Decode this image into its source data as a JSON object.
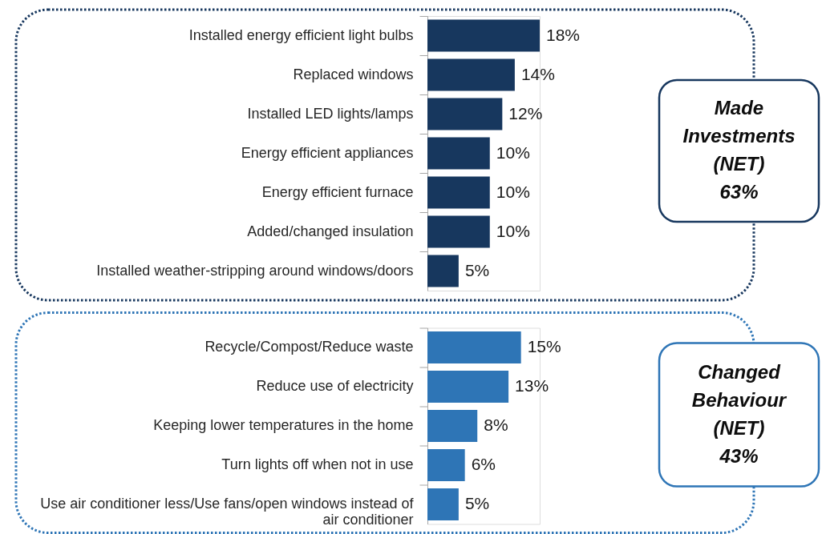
{
  "chart_data": [
    {
      "type": "bar",
      "orientation": "horizontal",
      "categories": [
        "Installed energy efficient light bulbs",
        "Replaced windows",
        "Installed LED lights/lamps",
        "Energy efficient appliances",
        "Energy efficient furnace",
        "Added/changed insulation",
        "Installed weather-stripping around windows/doors"
      ],
      "values": [
        18,
        14,
        12,
        10,
        10,
        10,
        5
      ],
      "value_labels": [
        "18%",
        "14%",
        "12%",
        "10%",
        "10%",
        "10%",
        "5%"
      ],
      "color": "#17375e",
      "tick_labels": "y",
      "annotations": [
        "Made Investments (NET) 63%"
      ]
    },
    {
      "type": "bar",
      "orientation": "horizontal",
      "categories": [
        "Recycle/Compost/Reduce waste",
        "Reduce use of electricity",
        "Keeping lower temperatures in the home",
        "Turn lights off when not in use",
        "Use air conditioner less/Use fans/open windows instead of air conditioner"
      ],
      "values": [
        15,
        13,
        8,
        6,
        5
      ],
      "value_labels": [
        "15%",
        "13%",
        "8%",
        "6%",
        "5%"
      ],
      "color": "#2e75b6",
      "tick_labels": "y",
      "annotations": [
        "Changed Behaviour (NET) 43%"
      ]
    }
  ]
}
